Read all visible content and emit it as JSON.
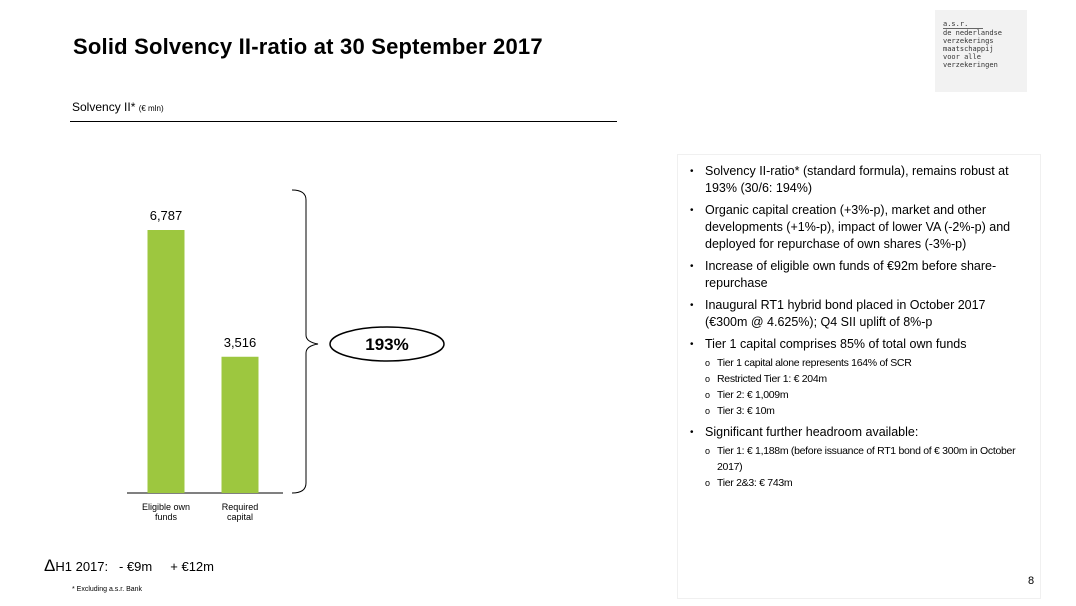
{
  "header": {
    "title": "Solid Solvency II-ratio at 30 September 2017",
    "subtitle": "Solvency II*",
    "subtitle_unit": "(€ mln)"
  },
  "logo": [
    "a.s.r.",
    "de nederlandse",
    "verzekerings",
    "maatschappij",
    "voor alle",
    "verzekeringen"
  ],
  "chart_data": {
    "type": "bar",
    "categories": [
      "Eligible own funds",
      "Required capital"
    ],
    "values": [
      6787,
      3516
    ],
    "value_labels": [
      "6,787",
      "3,516"
    ],
    "color": "#9dc73f",
    "annotation": "193%"
  },
  "delta": {
    "label": "H1 2017:",
    "values": [
      "- €9m",
      "+ €12m"
    ]
  },
  "footnote": "*   Excluding a.s.r. Bank",
  "bullets": [
    {
      "text": "Solvency II-ratio* (standard formula), remains robust at 193% (30/6: 194%)"
    },
    {
      "text": "Organic capital creation (+3%-p), market and other developments (+1%-p), impact of lower VA (-2%-p) and deployed for repurchase of own shares (-3%-p)"
    },
    {
      "text": "Increase of eligible own funds of €92m before share-repurchase"
    },
    {
      "text": "Inaugural RT1 hybrid bond placed in October 2017 (€300m @ 4.625%); Q4 SII uplift of 8%-p"
    },
    {
      "text": "Tier 1 capital comprises 85% of total own funds",
      "sub": [
        "Tier 1 capital alone represents 164% of SCR",
        "Restricted Tier 1: € 204m",
        "Tier 2: € 1,009m",
        "Tier 3: € 10m"
      ]
    },
    {
      "text": "Significant further headroom available:",
      "sub": [
        "Tier 1: € 1,188m (before issuance of RT1 bond of € 300m in October 2017)",
        "Tier 2&3: € 743m"
      ]
    }
  ],
  "page_number": "8"
}
